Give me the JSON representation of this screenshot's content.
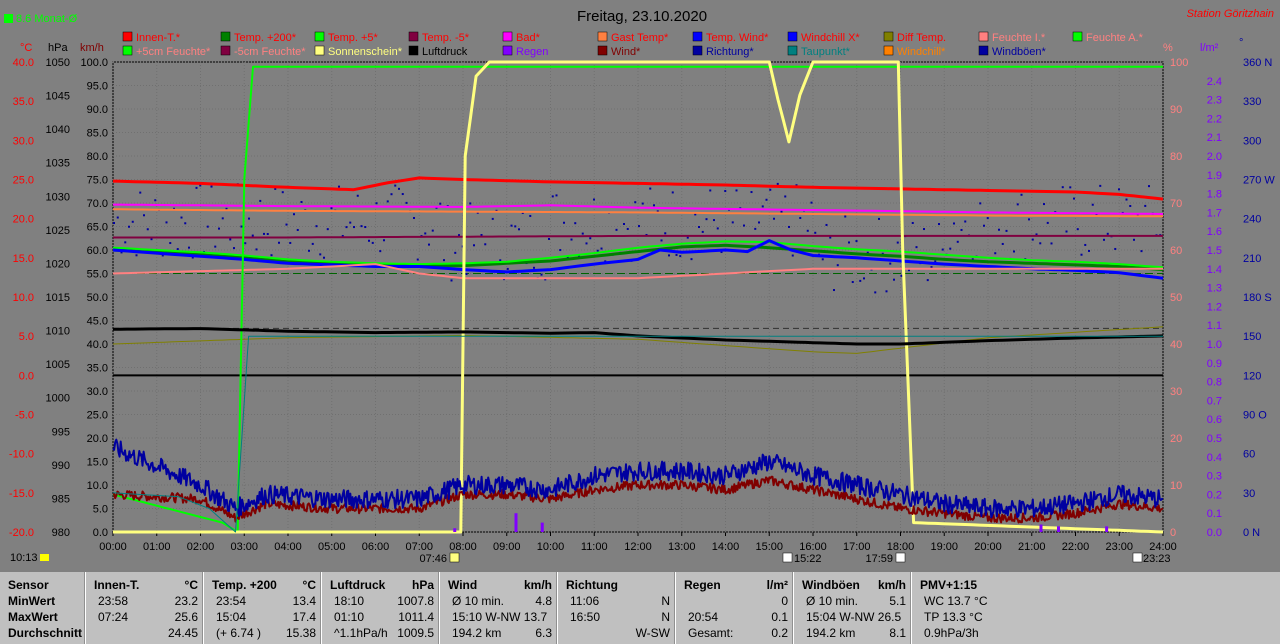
{
  "meta": {
    "month_avg": "8.6 Monat-Ø",
    "title": "Freitag, 23.10.2020",
    "station": "Station Göritzhain"
  },
  "colors": {
    "innen": "#ff0000",
    "t200": "#008000",
    "t5": "#00ff00",
    "tm5": "#800040",
    "bad": "#ff00ff",
    "gast": "#ff8040",
    "wind": "#0000ff",
    "windchill": "#0000ff",
    "diff": "#808000",
    "feuchteI": "#ff8080",
    "feuchteA": "#00ff00",
    "feuchte5": "#00ff00",
    "feuchteM5": "#800040",
    "sonne": "#ffff80",
    "luftdruck": "#000000",
    "regen": "#8000ff",
    "wind2": "#800000",
    "richtung": "#0000a0",
    "taupunkt": "#008080",
    "windchill2": "#ff8000",
    "boeen": "#0000a0",
    "grid": "#707070"
  },
  "legend": [
    {
      "label": "Innen-T.*",
      "color": "#ff0000",
      "text": "#ff0000"
    },
    {
      "label": "Temp. +200*",
      "color": "#008000",
      "text": "#ff0000"
    },
    {
      "label": "Temp. +5*",
      "color": "#00ff00",
      "text": "#ff0000"
    },
    {
      "label": "Temp. -5*",
      "color": "#800040",
      "text": "#ff0000"
    },
    {
      "label": "Bad*",
      "color": "#ff00ff",
      "text": "#ff0000"
    },
    {
      "label": "Gast Temp*",
      "color": "#ff8040",
      "text": "#ff0000"
    },
    {
      "label": "Temp. Wind*",
      "color": "#0000ff",
      "text": "#ff0000"
    },
    {
      "label": "Windchill X*",
      "color": "#0000ff",
      "text": "#ff0000"
    },
    {
      "label": "Diff Temp.",
      "color": "#808000",
      "text": "#ff0000"
    },
    {
      "label": "Feuchte I.*",
      "color": "#ff8080",
      "text": "#ff8080"
    },
    {
      "label": "Feuchte A.*",
      "color": "#00ff00",
      "text": "#ff8080"
    },
    {
      "label": "+5cm Feuchte*",
      "color": "#00ff00",
      "text": "#ff8080"
    },
    {
      "label": "-5cm Feuchte*",
      "color": "#800040",
      "text": "#ff8080"
    },
    {
      "label": "Sonnenschein*",
      "color": "#ffff80",
      "text": "#ffff80"
    },
    {
      "label": "Luftdruck",
      "color": "#000000",
      "text": "#000000"
    },
    {
      "label": "Regen",
      "color": "#8000ff",
      "text": "#8000ff"
    },
    {
      "label": "Wind*",
      "color": "#800000",
      "text": "#800000"
    },
    {
      "label": "Richtung*",
      "color": "#0000a0",
      "text": "#0000a0"
    },
    {
      "label": "Taupunkt*",
      "color": "#008080",
      "text": "#008080"
    },
    {
      "label": "Windchill*",
      "color": "#ff8000",
      "text": "#ff8000"
    },
    {
      "label": "Windböen*",
      "color": "#0000a0",
      "text": "#0000a0"
    }
  ],
  "axes": {
    "deg_unit": "°C",
    "hpa_unit": "hPa",
    "kmh_unit": "km/h",
    "pct_unit": "%",
    "rain_unit": "l/m²",
    "dir_unit": "°",
    "temp_ticks": [
      "40.0",
      "35.0",
      "30.0",
      "25.0",
      "20.0",
      "15.0",
      "10.0",
      "5.0",
      "0.0",
      "-5.0",
      "-10.0",
      "-15.0",
      "-20.0"
    ],
    "hpa_ticks": [
      "1050",
      "1045",
      "1040",
      "1035",
      "1030",
      "1025",
      "1020",
      "1015",
      "1010",
      "1005",
      "1000",
      "995",
      "990",
      "985",
      "980"
    ],
    "kmh_ticks": [
      "100.0",
      "95.0",
      "90.0",
      "85.0",
      "80.0",
      "75.0",
      "70.0",
      "65.0",
      "60.0",
      "55.0",
      "50.0",
      "45.0",
      "40.0",
      "35.0",
      "30.0",
      "25.0",
      "20.0",
      "15.0",
      "10.0",
      "5.0",
      "0.0"
    ],
    "pct_ticks": [
      "100",
      "90",
      "80",
      "70",
      "60",
      "50",
      "40",
      "30",
      "20",
      "10",
      "0"
    ],
    "rain_ticks": [
      "2.4",
      "2.3",
      "2.2",
      "2.1",
      "2.0",
      "1.9",
      "1.8",
      "1.7",
      "1.6",
      "1.5",
      "1.4",
      "1.3",
      "1.2",
      "1.1",
      "1.0",
      "0.9",
      "0.8",
      "0.7",
      "0.6",
      "0.5",
      "0.4",
      "0.3",
      "0.2",
      "0.1",
      "0.0"
    ],
    "dir_ticks": [
      "360 N",
      "330",
      "300",
      "270 W",
      "240",
      "210",
      "180 S",
      "150",
      "120",
      "90 O",
      "60",
      "30",
      "0 N"
    ],
    "x_ticks": [
      "00:00",
      "01:00",
      "02:00",
      "03:00",
      "04:00",
      "05:00",
      "06:00",
      "07:00",
      "08:00",
      "09:00",
      "10:00",
      "11:00",
      "12:00",
      "13:00",
      "14:00",
      "15:00",
      "16:00",
      "17:00",
      "18:00",
      "19:00",
      "20:00",
      "21:00",
      "22:00",
      "23:00",
      "24:00"
    ]
  },
  "sun_times": {
    "now": "10:13",
    "sunrise": "07:46",
    "moonset": "15:22",
    "sunset": "17:59",
    "moonrise": "23:23"
  },
  "chart_data": {
    "type": "line",
    "title": "Freitag, 23.10.2020",
    "x_unit": "hour",
    "xlim": [
      0,
      24
    ],
    "axes": {
      "temp_C": [
        -20,
        40
      ],
      "pressure_hPa": [
        980,
        1050
      ],
      "speed_kmh": [
        0,
        100
      ],
      "humidity_pct": [
        0,
        100
      ],
      "rain_lm2": [
        0,
        2.5
      ],
      "direction_deg": [
        0,
        360
      ]
    },
    "series": [
      {
        "name": "Innen-T.*",
        "axis": "temp_C",
        "x": [
          0,
          2,
          4,
          5.5,
          6.3,
          7,
          8,
          10,
          12,
          14,
          16,
          18,
          20,
          22,
          23,
          24
        ],
        "y": [
          24.8,
          24.5,
          24.0,
          23.7,
          24.6,
          25.2,
          25.0,
          24.7,
          24.5,
          24.3,
          24.0,
          23.8,
          23.6,
          23.4,
          23.1,
          22.5
        ]
      },
      {
        "name": "Temp. +200*",
        "axis": "temp_C",
        "x": [
          0,
          1,
          2,
          3,
          4,
          5,
          6,
          7,
          8,
          9,
          10,
          11,
          12,
          13,
          14,
          15,
          16,
          17,
          18,
          19,
          20,
          21,
          22,
          23,
          24
        ],
        "y": [
          16.0,
          15.7,
          15.4,
          15.0,
          14.5,
          14.3,
          14.0,
          14.0,
          14.0,
          14.3,
          14.6,
          15.2,
          15.8,
          16.4,
          16.6,
          16.3,
          15.9,
          15.5,
          15.2,
          14.8,
          14.5,
          14.3,
          14.1,
          13.9,
          13.5
        ]
      },
      {
        "name": "Temp. +5*",
        "axis": "temp_C",
        "x": [
          0,
          1,
          2,
          3,
          4,
          5,
          6,
          7,
          8,
          9,
          10,
          11,
          12,
          13,
          14,
          15,
          16,
          17,
          18,
          19,
          20,
          21,
          22,
          23,
          24
        ],
        "y": [
          16.3,
          16.0,
          15.7,
          15.3,
          14.8,
          14.5,
          14.3,
          14.2,
          14.3,
          14.5,
          15.0,
          15.6,
          16.3,
          16.8,
          17.1,
          17.0,
          16.5,
          16.1,
          15.8,
          15.4,
          15.0,
          14.7,
          14.5,
          14.2,
          13.8
        ]
      },
      {
        "name": "Temp. -5*",
        "axis": "temp_C",
        "x": [
          0,
          4,
          8,
          12,
          16,
          20,
          24
        ],
        "y": [
          17.6,
          17.6,
          17.7,
          17.8,
          17.8,
          17.8,
          17.8
        ]
      },
      {
        "name": "Bad*",
        "axis": "temp_C",
        "x": [
          0,
          4,
          8,
          10,
          12,
          16,
          20,
          24
        ],
        "y": [
          21.8,
          21.6,
          21.5,
          21.7,
          21.4,
          21.1,
          20.8,
          20.6
        ]
      },
      {
        "name": "Gast Temp*",
        "axis": "temp_C",
        "x": [
          0,
          4,
          8,
          12,
          16,
          20,
          24
        ],
        "y": [
          21.2,
          21.0,
          20.9,
          20.8,
          20.6,
          20.4,
          20.3
        ]
      },
      {
        "name": "Temp. Wind*",
        "axis": "temp_C",
        "x": [
          0,
          1,
          2,
          3,
          4,
          5,
          6,
          7,
          8,
          9,
          10,
          11,
          12,
          12.5,
          13,
          14,
          14.5,
          15,
          15.5,
          16,
          17,
          18,
          19,
          20,
          21,
          22,
          23,
          24
        ],
        "y": [
          16.0,
          15.6,
          15.2,
          14.8,
          14.3,
          14.1,
          13.9,
          13.9,
          13.5,
          13.2,
          13.5,
          14.2,
          14.8,
          16.0,
          15.7,
          16.0,
          15.8,
          17.2,
          16.0,
          15.3,
          15.0,
          14.6,
          14.2,
          13.9,
          13.6,
          13.4,
          13.1,
          12.4
        ]
      },
      {
        "name": "Diff Temp.",
        "axis": "temp_C",
        "x": [
          0,
          4,
          8,
          12,
          16,
          17,
          20,
          24
        ],
        "y": [
          4.0,
          4.8,
          5.1,
          4.6,
          3.0,
          2.8,
          4.8,
          6.2
        ]
      },
      {
        "name": "Feuchte I.*",
        "axis": "humidity_pct",
        "x": [
          0,
          4,
          6,
          7,
          8,
          12,
          16,
          20,
          24
        ],
        "y": [
          55,
          56,
          57,
          55,
          54,
          54,
          56,
          56,
          56
        ]
      },
      {
        "name": "Feuchte A.*",
        "axis": "humidity_pct",
        "x": [
          0,
          2.5,
          2.85,
          3.0,
          3.2,
          24
        ],
        "y": [
          8,
          2,
          0,
          75,
          99,
          99
        ]
      },
      {
        "name": "Sonnenschein*",
        "axis": "humidity_pct",
        "x": [
          0,
          7.95,
          8.05,
          8.3,
          8.6,
          15.0,
          15.2,
          15.45,
          15.7,
          16.0,
          17.95,
          18.05,
          18.3,
          24
        ],
        "y": [
          0,
          0,
          80,
          97,
          100,
          100,
          92,
          83,
          93,
          100,
          100,
          60,
          2,
          0
        ]
      },
      {
        "name": "Luftdruck",
        "axis": "pressure_hPa",
        "x": [
          0,
          2,
          4,
          6,
          8,
          10,
          11,
          12,
          14,
          16,
          17,
          18,
          20,
          22,
          24
        ],
        "y": [
          1010.2,
          1010.3,
          1009.9,
          1009.7,
          1009.8,
          1009.6,
          1009.7,
          1009.2,
          1008.6,
          1008.2,
          1008.0,
          1008.0,
          1008.5,
          1008.9,
          1009.2
        ]
      },
      {
        "name": "Wind*",
        "axis": "speed_kmh",
        "x": [
          0,
          2,
          2.8,
          3.5,
          5,
          7,
          8,
          9,
          10,
          11,
          12,
          13,
          14,
          15,
          16,
          17,
          18,
          19,
          20,
          21,
          22,
          23,
          24
        ],
        "y": [
          8,
          7,
          3,
          6,
          5,
          5,
          8,
          8,
          7,
          9,
          10,
          10,
          9,
          11,
          9,
          7,
          5,
          4,
          3,
          3,
          4,
          6,
          5
        ]
      },
      {
        "name": "Windböen*",
        "axis": "speed_kmh",
        "x": [
          0,
          1,
          2,
          2.8,
          3.5,
          5,
          7,
          8,
          9,
          10,
          11,
          12,
          13,
          14,
          15,
          16,
          17,
          18,
          19,
          20,
          21,
          22,
          23,
          24
        ],
        "y": [
          18,
          14,
          10,
          5,
          8,
          7,
          7,
          10,
          10,
          9,
          12,
          13,
          13,
          12,
          15,
          12,
          10,
          8,
          6,
          5,
          5,
          6,
          8,
          7
        ]
      },
      {
        "name": "Taupunkt*",
        "axis": "temp_C",
        "x": [
          0,
          1.5,
          2.2,
          2.8,
          3.1,
          24
        ],
        "y": [
          -15,
          -15.5,
          -17,
          -20,
          5,
          5
        ]
      },
      {
        "name": "Regen",
        "axis": "rain_lm2",
        "x": [
          7.8,
          9.2,
          9.8,
          21.2,
          21.6,
          22.7
        ],
        "y": [
          0.02,
          0.1,
          0.05,
          0.04,
          0.03,
          0.03
        ]
      }
    ],
    "scatter_richtung": {
      "name": "Richtung*",
      "axis": "direction_deg",
      "center_deg": 238,
      "spread_deg": 30
    }
  },
  "stats": {
    "sensor": {
      "header": "Sensor",
      "rows": [
        "MinWert",
        "MaxWert",
        "Durchschnitt"
      ]
    },
    "columns": [
      {
        "title": "Innen-T.",
        "unit": "°C",
        "rows": [
          [
            "23:58",
            "23.2"
          ],
          [
            "07:24",
            "25.6"
          ],
          [
            "",
            "24.45"
          ]
        ]
      },
      {
        "title": "Temp. +200",
        "unit": "°C",
        "rows": [
          [
            "23:54",
            "13.4"
          ],
          [
            "15:04",
            "17.4"
          ],
          [
            "(+ 6.74 )",
            "15.38"
          ]
        ]
      },
      {
        "title": "Luftdruck",
        "unit": "hPa",
        "rows": [
          [
            "18:10",
            "1007.8"
          ],
          [
            "01:10",
            "1011.4"
          ],
          [
            "^1.1hPa/h",
            "1009.5"
          ]
        ]
      },
      {
        "title": "Wind",
        "unit": "km/h",
        "rows": [
          [
            "Ø 10 min.",
            "4.8"
          ],
          [
            "15:10   W-NW 13.7",
            ""
          ],
          [
            "194.2 km",
            "6.3"
          ]
        ]
      },
      {
        "title": "Richtung",
        "unit": "",
        "rows": [
          [
            "11:06",
            "N"
          ],
          [
            "16:50",
            "N"
          ],
          [
            "",
            "W-SW"
          ]
        ]
      },
      {
        "title": "Regen",
        "unit": "l/m²",
        "rows": [
          [
            "",
            "0"
          ],
          [
            "20:54",
            "0.1"
          ],
          [
            "Gesamt:",
            "0.2"
          ]
        ]
      },
      {
        "title": "Windböen",
        "unit": "km/h",
        "rows": [
          [
            "Ø 10 min.",
            "5.1"
          ],
          [
            "15:04   W-NW 26.5",
            ""
          ],
          [
            "194.2 km",
            "8.1"
          ]
        ]
      },
      {
        "title": "PMV+1:15",
        "unit": "",
        "rows": [
          [
            "WC 13.7 °C",
            ""
          ],
          [
            "TP 13.3 °C",
            ""
          ],
          [
            "0.9hPa/3h",
            ""
          ]
        ]
      }
    ]
  }
}
